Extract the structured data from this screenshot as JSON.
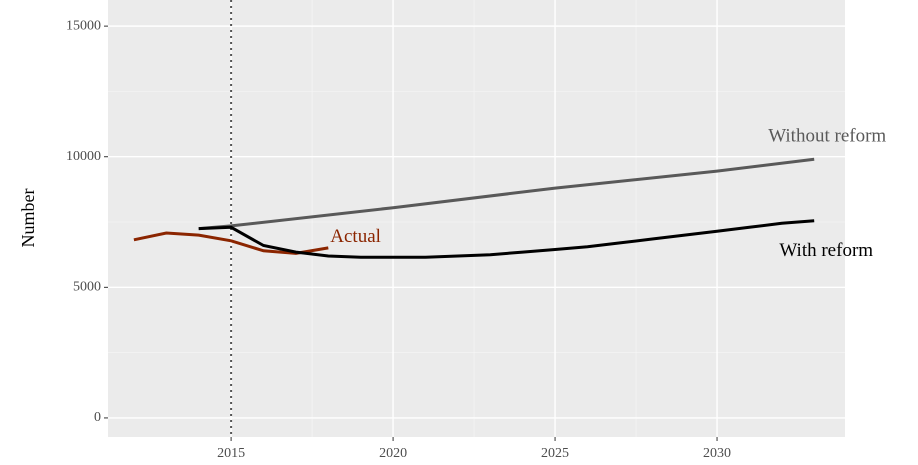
{
  "chart_data": {
    "type": "line",
    "y_label": "Number",
    "xlim": [
      2011.2,
      2033.95
    ],
    "ylim": [
      -730,
      16000
    ],
    "xticks": [
      2015,
      2020,
      2025,
      2030
    ],
    "yticks": [
      0,
      5000,
      10000,
      15000
    ],
    "grid": true,
    "vline": 2015,
    "series": [
      {
        "name": "Actual",
        "color": "#8b2500",
        "x": [
          2012,
          2013,
          2014,
          2015,
          2016,
          2017,
          2018
        ],
        "values": [
          6820,
          7080,
          7000,
          6780,
          6400,
          6300,
          6510
        ]
      },
      {
        "name": "Without reform",
        "color": "#595959",
        "x": [
          2014,
          2015,
          2020,
          2025,
          2030,
          2033
        ],
        "values": [
          7250,
          7350,
          8050,
          8800,
          9450,
          9900
        ]
      },
      {
        "name": "With reform",
        "color": "#000000",
        "x": [
          2014,
          2015,
          2016,
          2017,
          2018,
          2019,
          2020,
          2021,
          2022,
          2023,
          2024,
          2025,
          2026,
          2027,
          2028,
          2029,
          2030,
          2031,
          2032,
          2033
        ],
        "values": [
          7250,
          7300,
          6600,
          6350,
          6200,
          6150,
          6150,
          6150,
          6200,
          6250,
          6350,
          6450,
          6550,
          6700,
          6850,
          7000,
          7150,
          7300,
          7450,
          7550
        ]
      }
    ]
  }
}
